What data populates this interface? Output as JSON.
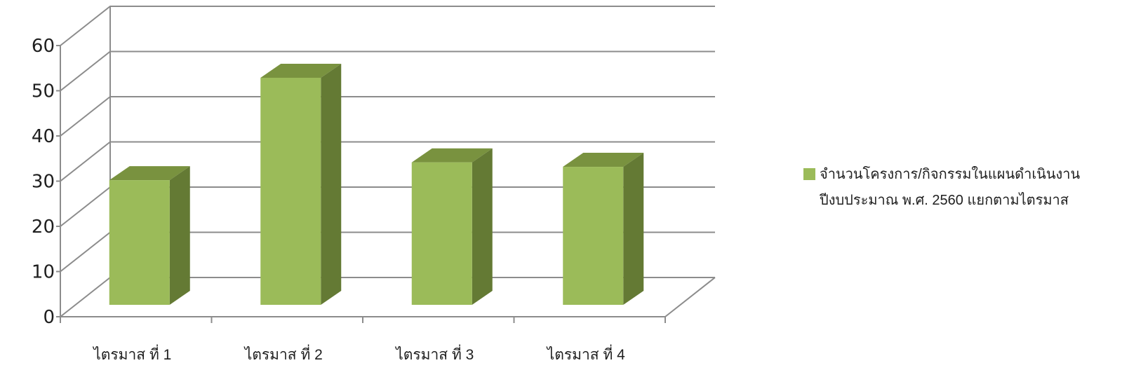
{
  "chart_data": {
    "type": "bar",
    "style": "3d-column",
    "categories": [
      "ไตรมาส ที่ 1",
      "ไตรมาส ที่ 2",
      "ไตรมาส ที่ 3",
      "ไตรมาส ที่ 4"
    ],
    "series": [
      {
        "name": "จำนวนโครงการ/กิจกรรมในแผนดำเนินงาน\nปีงบประมาณ พ.ศ. 2560 แยกตามไตรมาส",
        "values": [
          28,
          51,
          32,
          31
        ],
        "color": "#9bbb59"
      }
    ],
    "yticks": [
      "0",
      "10",
      "20",
      "30",
      "40",
      "50",
      "60"
    ],
    "ylim": [
      0,
      60
    ],
    "grid": true,
    "legend": "right",
    "title": "",
    "xlabel": "",
    "ylabel": ""
  }
}
